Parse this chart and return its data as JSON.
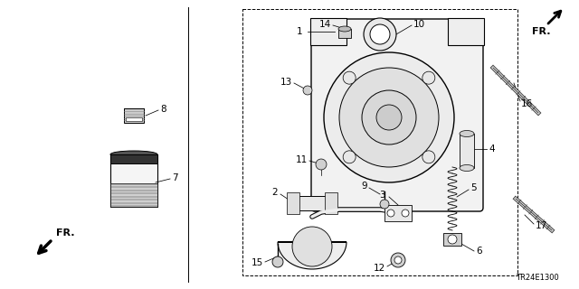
{
  "bg_color": "#ffffff",
  "lc": "#000000",
  "gray1": "#444444",
  "gray2": "#888888",
  "gray3": "#bbbbbb",
  "title_code": "TR24E1300",
  "figsize": [
    6.4,
    3.2
  ],
  "dpi": 100
}
